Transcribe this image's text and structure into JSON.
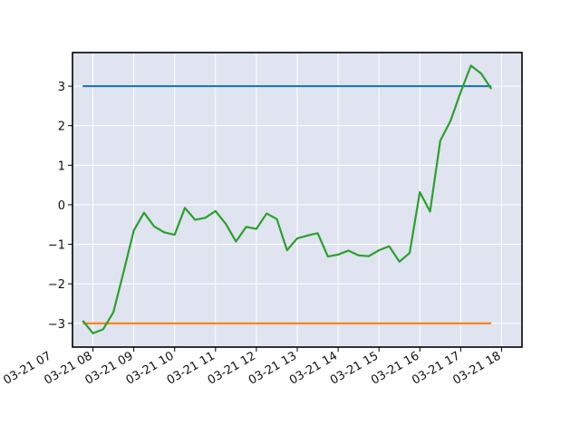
{
  "chart_data": {
    "type": "line",
    "title": "",
    "xlabel": "",
    "ylabel": "",
    "x_axis": "datetime",
    "xlim": [
      "2024-03-21 07:30",
      "2024-03-21 18:30"
    ],
    "ylim": [
      -3.6,
      3.85
    ],
    "x_ticks": [
      {
        "value": "2024-03-21 07:00",
        "label": "03-21 07"
      },
      {
        "value": "2024-03-21 08:00",
        "label": "03-21 08"
      },
      {
        "value": "2024-03-21 09:00",
        "label": "03-21 09"
      },
      {
        "value": "2024-03-21 10:00",
        "label": "03-21 10"
      },
      {
        "value": "2024-03-21 11:00",
        "label": "03-21 11"
      },
      {
        "value": "2024-03-21 12:00",
        "label": "03-21 12"
      },
      {
        "value": "2024-03-21 13:00",
        "label": "03-21 13"
      },
      {
        "value": "2024-03-21 14:00",
        "label": "03-21 14"
      },
      {
        "value": "2024-03-21 15:00",
        "label": "03-21 15"
      },
      {
        "value": "2024-03-21 16:00",
        "label": "03-21 16"
      },
      {
        "value": "2024-03-21 17:00",
        "label": "03-21 17"
      },
      {
        "value": "2024-03-21 18:00",
        "label": "03-21 18"
      }
    ],
    "y_ticks": [
      {
        "value": 3,
        "label": "3"
      },
      {
        "value": 2,
        "label": "2"
      },
      {
        "value": 1,
        "label": "1"
      },
      {
        "value": 0,
        "label": "0"
      },
      {
        "value": -1,
        "label": "−1"
      },
      {
        "value": -2,
        "label": "−2"
      },
      {
        "value": -3,
        "label": "−3"
      }
    ],
    "grid": true,
    "legend": "none",
    "colors": {
      "background": "#dfe4f0",
      "grid": "#ffffff",
      "axes": "#000000"
    },
    "series": [
      {
        "color": "#1f77b4",
        "points": [
          [
            "2024-03-21 07:45",
            3
          ],
          [
            "2024-03-21 17:45",
            3
          ]
        ]
      },
      {
        "color": "#ff7f0e",
        "points": [
          [
            "2024-03-21 07:45",
            -3
          ],
          [
            "2024-03-21 17:45",
            -3
          ]
        ]
      },
      {
        "color": "#2ca02c",
        "points": [
          [
            "2024-03-21 07:45",
            -2.93
          ],
          [
            "2024-03-21 08:00",
            -3.25
          ],
          [
            "2024-03-21 08:15",
            -3.15
          ],
          [
            "2024-03-21 08:30",
            -2.72
          ],
          [
            "2024-03-21 08:45",
            -1.7
          ],
          [
            "2024-03-21 09:00",
            -0.65
          ],
          [
            "2024-03-21 09:15",
            -0.2
          ],
          [
            "2024-03-21 09:30",
            -0.55
          ],
          [
            "2024-03-21 09:45",
            -0.7
          ],
          [
            "2024-03-21 10:00",
            -0.76
          ],
          [
            "2024-03-21 10:15",
            -0.08
          ],
          [
            "2024-03-21 10:30",
            -0.38
          ],
          [
            "2024-03-21 10:45",
            -0.33
          ],
          [
            "2024-03-21 11:00",
            -0.16
          ],
          [
            "2024-03-21 11:15",
            -0.48
          ],
          [
            "2024-03-21 11:30",
            -0.93
          ],
          [
            "2024-03-21 11:45",
            -0.56
          ],
          [
            "2024-03-21 12:00",
            -0.61
          ],
          [
            "2024-03-21 12:15",
            -0.22
          ],
          [
            "2024-03-21 12:30",
            -0.36
          ],
          [
            "2024-03-21 12:45",
            -1.15
          ],
          [
            "2024-03-21 13:00",
            -0.85
          ],
          [
            "2024-03-21 13:15",
            -0.78
          ],
          [
            "2024-03-21 13:30",
            -0.72
          ],
          [
            "2024-03-21 13:45",
            -1.31
          ],
          [
            "2024-03-21 14:00",
            -1.26
          ],
          [
            "2024-03-21 14:15",
            -1.16
          ],
          [
            "2024-03-21 14:30",
            -1.28
          ],
          [
            "2024-03-21 14:45",
            -1.3
          ],
          [
            "2024-03-21 15:00",
            -1.15
          ],
          [
            "2024-03-21 15:15",
            -1.05
          ],
          [
            "2024-03-21 15:30",
            -1.44
          ],
          [
            "2024-03-21 15:45",
            -1.22
          ],
          [
            "2024-03-21 16:00",
            0.32
          ],
          [
            "2024-03-21 16:15",
            -0.17
          ],
          [
            "2024-03-21 16:30",
            1.62
          ],
          [
            "2024-03-21 16:45",
            2.12
          ],
          [
            "2024-03-21 17:00",
            2.85
          ],
          [
            "2024-03-21 17:15",
            3.52
          ],
          [
            "2024-03-21 17:30",
            3.32
          ],
          [
            "2024-03-21 17:45",
            2.93
          ]
        ]
      }
    ]
  }
}
